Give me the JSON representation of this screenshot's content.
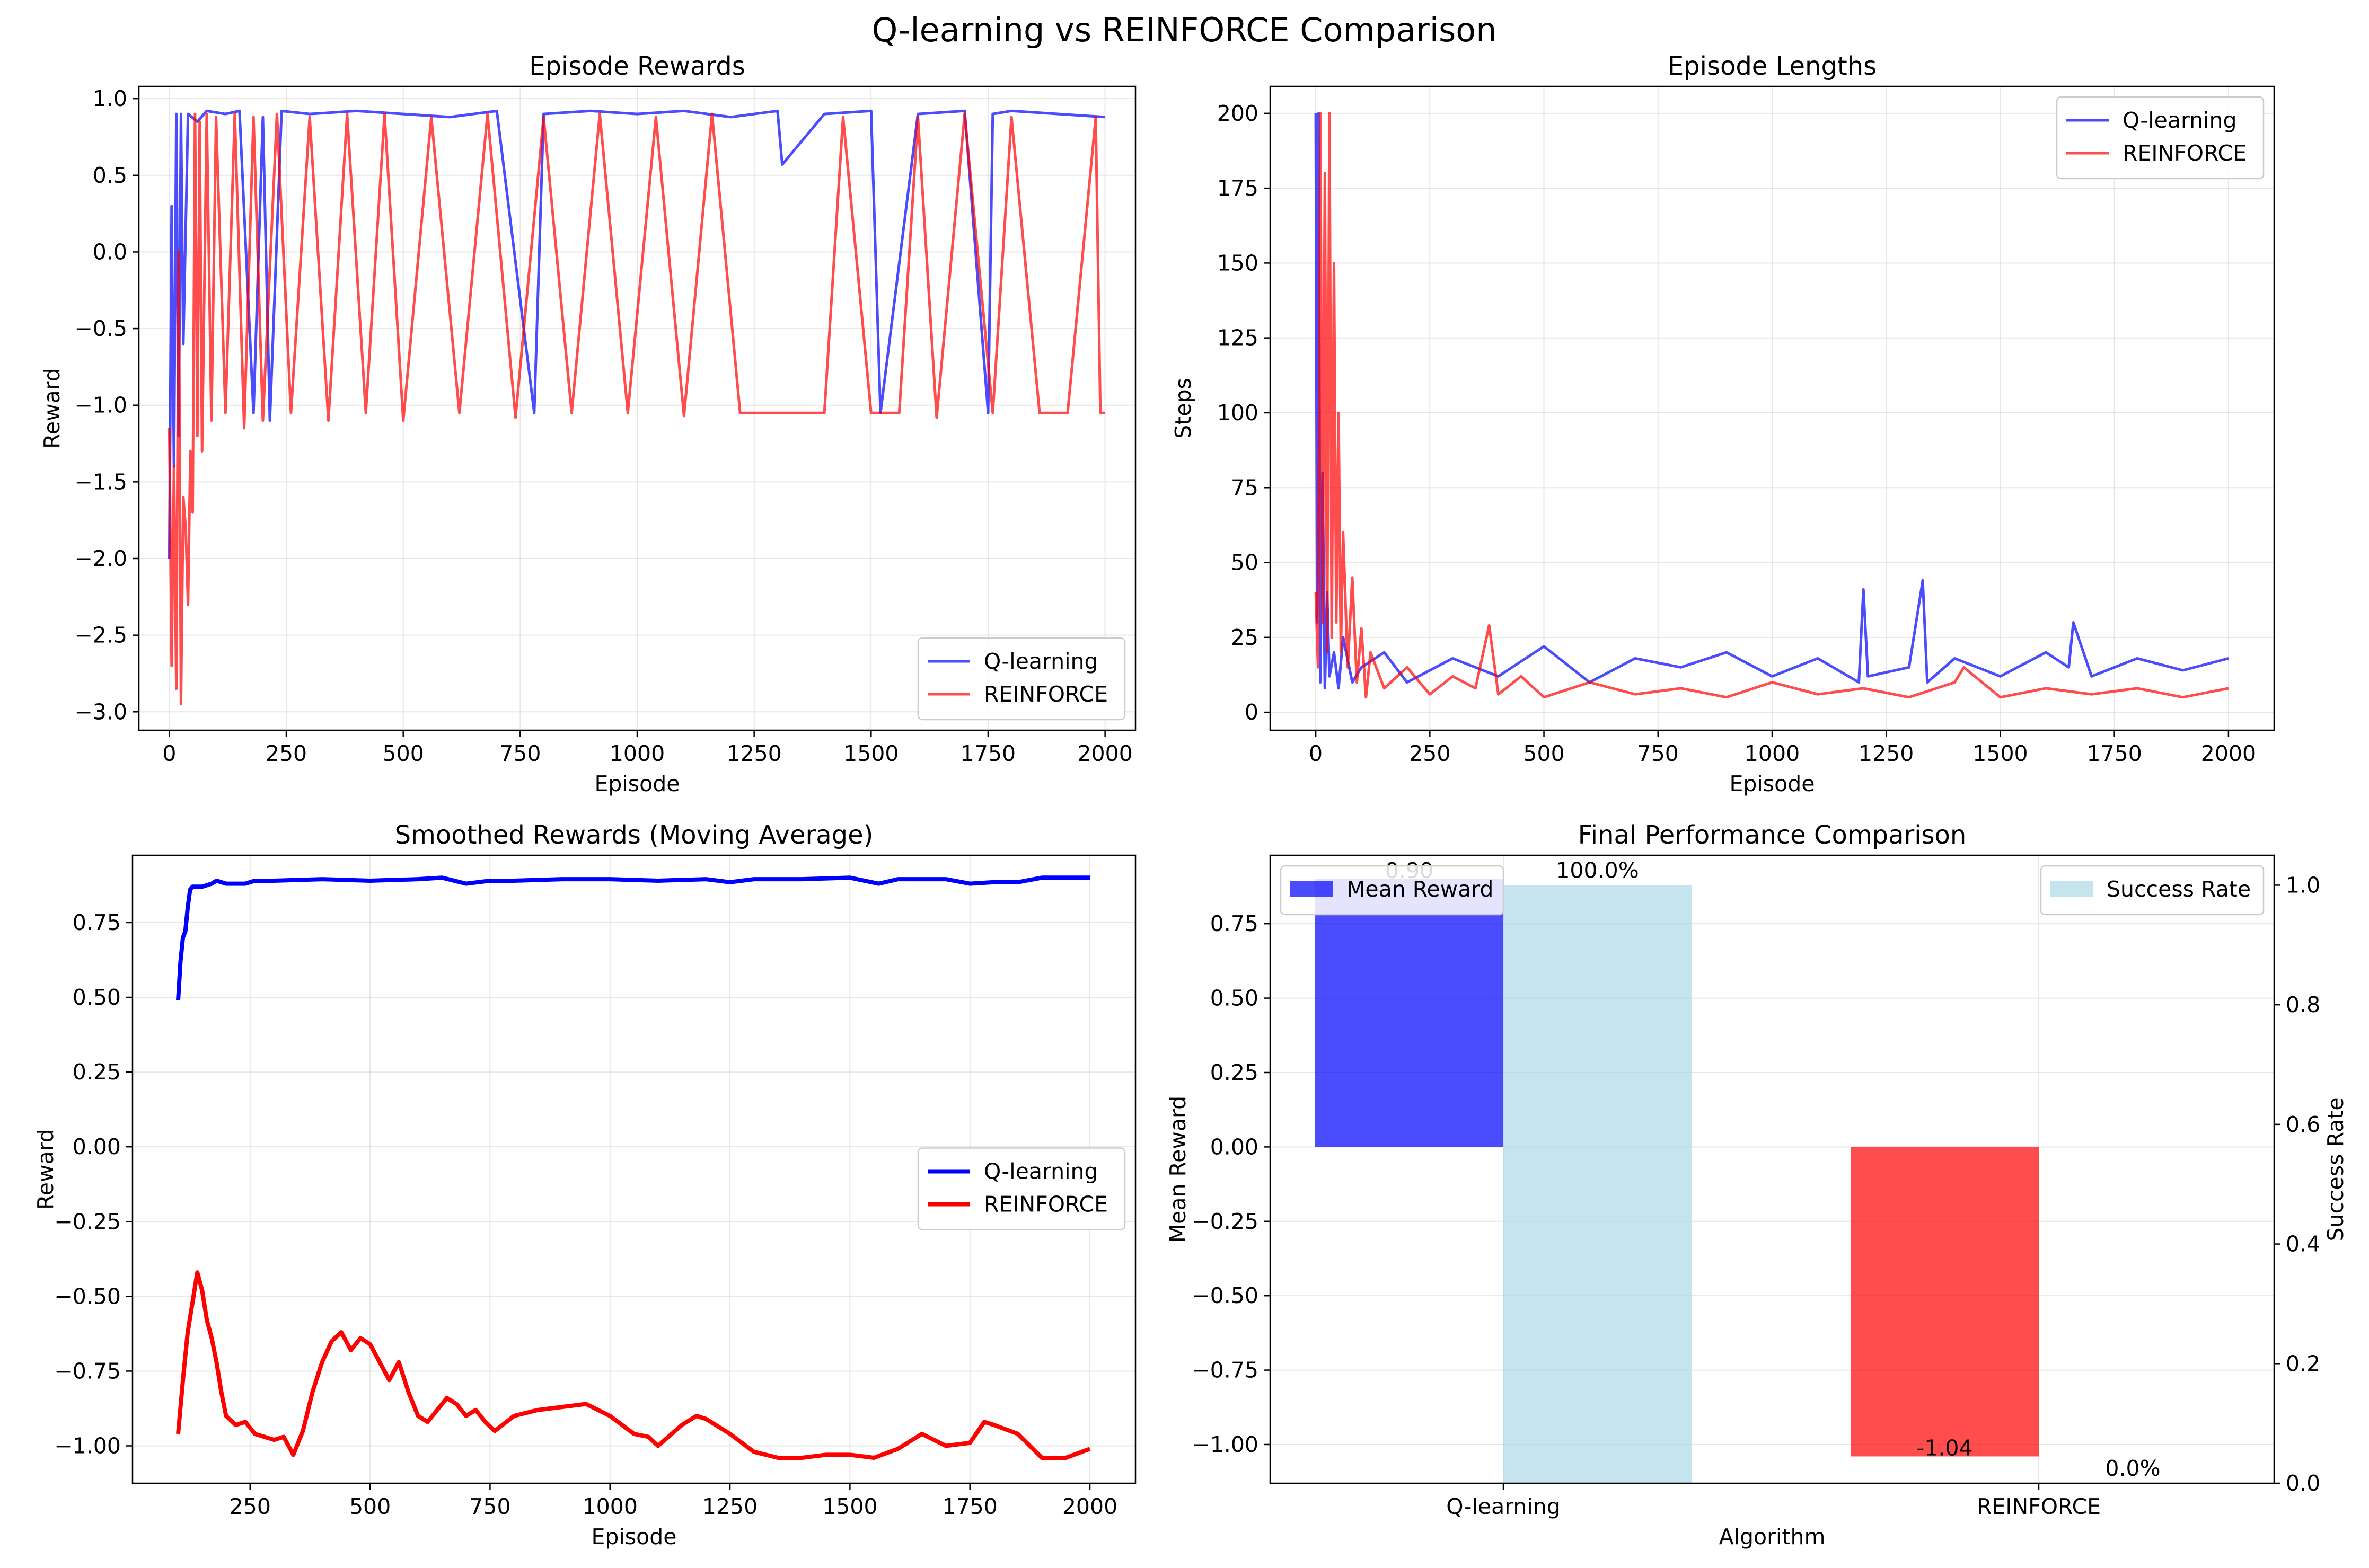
{
  "figure": {
    "suptitle": "Q-learning vs REINFORCE Comparison"
  },
  "chart_data": [
    {
      "panel": "episode-rewards",
      "type": "line",
      "title": "Episode Rewards",
      "xlabel": "Episode",
      "ylabel": "Reward",
      "xlim": [
        -65,
        2065
      ],
      "ylim": [
        -3.12,
        1.08
      ],
      "xticks": [
        0,
        250,
        500,
        750,
        1000,
        1250,
        1500,
        1750,
        2000
      ],
      "xtick_labels": [
        "0",
        "250",
        "500",
        "750",
        "1000",
        "1250",
        "1500",
        "1750",
        "2000"
      ],
      "yticks": [
        1.0,
        0.5,
        0.0,
        -0.5,
        -1.0,
        -1.5,
        -2.0,
        -2.5,
        -3.0
      ],
      "ytick_labels": [
        "1.0",
        "0.5",
        "0.0",
        "−0.5",
        "−1.0",
        "−1.5",
        "−2.0",
        "−2.5",
        "−3.0"
      ],
      "grid": true,
      "legend": "lower-right",
      "series": [
        {
          "name": "Q-learning",
          "color": "#0000ff",
          "opacity": 0.7,
          "x": [
            0,
            5,
            10,
            15,
            20,
            25,
            30,
            40,
            60,
            80,
            120,
            150,
            180,
            200,
            215,
            240,
            300,
            400,
            500,
            600,
            700,
            780,
            800,
            900,
            1000,
            1100,
            1200,
            1300,
            1310,
            1400,
            1500,
            1520,
            1600,
            1700,
            1750,
            1760,
            1800,
            1900,
            2000
          ],
          "y": [
            -2.0,
            0.3,
            -1.4,
            0.9,
            -1.2,
            0.9,
            -0.6,
            0.9,
            0.85,
            0.92,
            0.9,
            0.92,
            -1.05,
            0.88,
            -1.1,
            0.92,
            0.9,
            0.92,
            0.9,
            0.88,
            0.92,
            -1.05,
            0.9,
            0.92,
            0.9,
            0.92,
            0.88,
            0.92,
            0.57,
            0.9,
            0.92,
            -1.05,
            0.9,
            0.92,
            -1.05,
            0.9,
            0.92,
            0.9,
            0.88
          ]
        },
        {
          "name": "REINFORCE",
          "color": "#ff0000",
          "opacity": 0.7,
          "x": [
            0,
            5,
            10,
            15,
            20,
            25,
            30,
            35,
            40,
            45,
            50,
            55,
            60,
            65,
            70,
            80,
            90,
            100,
            120,
            140,
            160,
            180,
            200,
            230,
            260,
            300,
            340,
            380,
            420,
            460,
            500,
            560,
            620,
            680,
            740,
            800,
            860,
            920,
            980,
            1040,
            1100,
            1160,
            1220,
            1280,
            1340,
            1400,
            1440,
            1500,
            1560,
            1600,
            1640,
            1700,
            1760,
            1800,
            1860,
            1920,
            1980,
            1990,
            2000
          ],
          "y": [
            -1.15,
            -2.7,
            -1.4,
            -2.85,
            0.0,
            -2.95,
            -1.6,
            -1.8,
            -2.3,
            -1.3,
            -1.7,
            0.9,
            -1.2,
            0.85,
            -1.3,
            0.9,
            -1.1,
            0.88,
            -1.05,
            0.9,
            -1.15,
            0.88,
            -1.1,
            0.9,
            -1.05,
            0.88,
            -1.1,
            0.9,
            -1.05,
            0.9,
            -1.1,
            0.88,
            -1.05,
            0.9,
            -1.08,
            0.88,
            -1.05,
            0.9,
            -1.05,
            0.88,
            -1.07,
            0.9,
            -1.05,
            -1.05,
            -1.05,
            -1.05,
            0.88,
            -1.05,
            -1.05,
            0.88,
            -1.08,
            0.9,
            -1.05,
            0.88,
            -1.05,
            -1.05,
            0.88,
            -1.05,
            -1.05
          ]
        }
      ]
    },
    {
      "panel": "episode-lengths",
      "type": "line",
      "title": "Episode Lengths",
      "xlabel": "Episode",
      "ylabel": "Steps",
      "xlim": [
        -100,
        2100
      ],
      "ylim": [
        -6,
        209
      ],
      "xticks": [
        0,
        250,
        500,
        750,
        1000,
        1250,
        1500,
        1750,
        2000
      ],
      "xtick_labels": [
        "0",
        "250",
        "500",
        "750",
        "1000",
        "1250",
        "1500",
        "1750",
        "2000"
      ],
      "yticks": [
        200,
        175,
        150,
        125,
        100,
        75,
        50,
        25,
        0
      ],
      "ytick_labels": [
        "200",
        "175",
        "150",
        "125",
        "100",
        "75",
        "50",
        "25",
        "0"
      ],
      "grid": true,
      "legend": "upper-right",
      "series": [
        {
          "name": "Q-learning",
          "color": "#0000ff",
          "opacity": 0.7,
          "x": [
            0,
            3,
            6,
            10,
            15,
            20,
            25,
            30,
            40,
            50,
            60,
            80,
            100,
            150,
            200,
            300,
            400,
            500,
            600,
            700,
            800,
            900,
            1000,
            1100,
            1190,
            1200,
            1210,
            1300,
            1330,
            1340,
            1400,
            1500,
            1600,
            1650,
            1660,
            1700,
            1800,
            1900,
            2000
          ],
          "y": [
            200,
            30,
            200,
            10,
            80,
            8,
            40,
            12,
            20,
            8,
            25,
            10,
            15,
            20,
            10,
            18,
            12,
            22,
            10,
            18,
            15,
            20,
            12,
            18,
            10,
            41,
            12,
            15,
            44,
            10,
            18,
            12,
            20,
            15,
            30,
            12,
            18,
            14,
            18
          ]
        },
        {
          "name": "REINFORCE",
          "color": "#ff0000",
          "opacity": 0.7,
          "x": [
            0,
            5,
            10,
            15,
            20,
            25,
            30,
            35,
            40,
            45,
            50,
            55,
            60,
            70,
            80,
            90,
            100,
            110,
            120,
            150,
            200,
            250,
            300,
            350,
            380,
            400,
            450,
            500,
            600,
            700,
            800,
            900,
            1000,
            1100,
            1200,
            1300,
            1400,
            1420,
            1500,
            1600,
            1700,
            1800,
            1900,
            2000
          ],
          "y": [
            40,
            15,
            200,
            30,
            180,
            20,
            200,
            25,
            150,
            30,
            100,
            20,
            60,
            15,
            45,
            10,
            28,
            5,
            20,
            8,
            15,
            6,
            12,
            8,
            29,
            6,
            12,
            5,
            10,
            6,
            8,
            5,
            10,
            6,
            8,
            5,
            10,
            15,
            5,
            8,
            6,
            8,
            5,
            8
          ]
        }
      ]
    },
    {
      "panel": "smoothed-rewards",
      "type": "line",
      "title": "Smoothed Rewards (Moving Average)",
      "xlabel": "Episode",
      "ylabel": "Reward",
      "xlim": [
        5,
        2095
      ],
      "ylim": [
        -1.125,
        0.975
      ],
      "xticks": [
        250,
        500,
        750,
        1000,
        1250,
        1500,
        1750,
        2000
      ],
      "xtick_labels": [
        "250",
        "500",
        "750",
        "1000",
        "1250",
        "1500",
        "1750",
        "2000"
      ],
      "yticks": [
        0.75,
        0.5,
        0.25,
        0.0,
        -0.25,
        -0.5,
        -0.75,
        -1.0
      ],
      "ytick_labels": [
        "0.75",
        "0.50",
        "0.25",
        "0.00",
        "−0.25",
        "−0.50",
        "−0.75",
        "−1.00"
      ],
      "grid": true,
      "legend": "center-right",
      "series": [
        {
          "name": "Q-learning",
          "color": "#0000ff",
          "opacity": 1.0,
          "x": [
            100,
            105,
            110,
            115,
            120,
            125,
            130,
            150,
            170,
            180,
            200,
            240,
            260,
            300,
            400,
            500,
            600,
            650,
            700,
            750,
            800,
            900,
            1000,
            1100,
            1200,
            1250,
            1300,
            1400,
            1500,
            1560,
            1600,
            1700,
            1750,
            1800,
            1850,
            1900,
            2000
          ],
          "y": [
            0.49,
            0.62,
            0.7,
            0.72,
            0.8,
            0.86,
            0.87,
            0.87,
            0.88,
            0.89,
            0.88,
            0.88,
            0.89,
            0.89,
            0.895,
            0.89,
            0.895,
            0.9,
            0.88,
            0.89,
            0.89,
            0.895,
            0.895,
            0.89,
            0.895,
            0.885,
            0.895,
            0.895,
            0.9,
            0.88,
            0.895,
            0.895,
            0.88,
            0.885,
            0.885,
            0.9,
            0.9
          ]
        },
        {
          "name": "REINFORCE",
          "color": "#ff0000",
          "opacity": 1.0,
          "x": [
            100,
            110,
            120,
            130,
            140,
            150,
            160,
            170,
            180,
            190,
            200,
            220,
            240,
            260,
            280,
            300,
            320,
            340,
            360,
            380,
            400,
            420,
            440,
            460,
            480,
            500,
            520,
            540,
            560,
            580,
            600,
            620,
            640,
            660,
            680,
            700,
            720,
            740,
            760,
            800,
            850,
            900,
            950,
            1000,
            1050,
            1080,
            1100,
            1150,
            1180,
            1200,
            1250,
            1300,
            1350,
            1400,
            1450,
            1500,
            1550,
            1600,
            1650,
            1700,
            1750,
            1780,
            1800,
            1850,
            1900,
            1950,
            2000
          ],
          "y": [
            -0.96,
            -0.78,
            -0.62,
            -0.52,
            -0.42,
            -0.48,
            -0.58,
            -0.64,
            -0.72,
            -0.82,
            -0.9,
            -0.93,
            -0.92,
            -0.96,
            -0.97,
            -0.98,
            -0.97,
            -1.03,
            -0.95,
            -0.82,
            -0.72,
            -0.65,
            -0.62,
            -0.68,
            -0.64,
            -0.66,
            -0.72,
            -0.78,
            -0.72,
            -0.82,
            -0.9,
            -0.92,
            -0.88,
            -0.84,
            -0.86,
            -0.9,
            -0.88,
            -0.92,
            -0.95,
            -0.9,
            -0.88,
            -0.87,
            -0.86,
            -0.9,
            -0.96,
            -0.97,
            -1.0,
            -0.93,
            -0.9,
            -0.91,
            -0.96,
            -1.02,
            -1.04,
            -1.04,
            -1.03,
            -1.03,
            -1.04,
            -1.01,
            -0.96,
            -1.0,
            -0.99,
            -0.92,
            -0.93,
            -0.96,
            -1.04,
            -1.04,
            -1.01
          ]
        }
      ]
    },
    {
      "panel": "final-performance",
      "type": "bar",
      "title": "Final Performance Comparison",
      "xlabel": "Algorithm",
      "ylabel": "Mean Reward",
      "ylabel_right": "Success Rate",
      "categories": [
        "Q-learning",
        "REINFORCE"
      ],
      "ylim": [
        -1.13,
        0.98
      ],
      "ylim_right": [
        0.0,
        1.05
      ],
      "yticks": [
        0.75,
        0.5,
        0.25,
        0.0,
        -0.25,
        -0.5,
        -0.75,
        -1.0
      ],
      "ytick_labels": [
        "0.75",
        "0.50",
        "0.25",
        "0.00",
        "−0.25",
        "−0.50",
        "−0.75",
        "−1.00"
      ],
      "yticks_right": [
        1.0,
        0.8,
        0.6,
        0.4,
        0.2,
        0.0
      ],
      "ytick_labels_right": [
        "1.0",
        "0.8",
        "0.6",
        "0.4",
        "0.2",
        "0.0"
      ],
      "grid": true,
      "series": [
        {
          "name": "Mean Reward",
          "axis": "left",
          "colors": [
            "#0000ff",
            "#ff0000"
          ],
          "opacity": 0.7,
          "values": [
            0.9,
            -1.04
          ],
          "labels": [
            "0.90",
            "-1.04"
          ],
          "legend": "upper-left"
        },
        {
          "name": "Success Rate",
          "axis": "right",
          "colors": [
            "#add8e6",
            "#add8e6"
          ],
          "opacity": 0.7,
          "values": [
            1.0,
            0.0
          ],
          "labels": [
            "100.0%",
            "0.0%"
          ],
          "legend": "upper-right"
        }
      ]
    }
  ]
}
